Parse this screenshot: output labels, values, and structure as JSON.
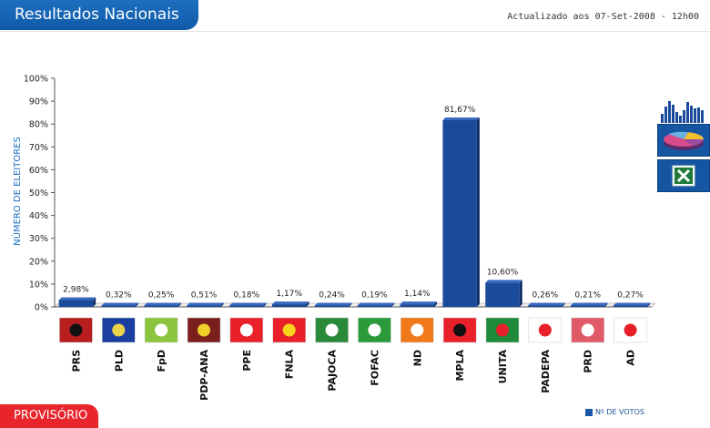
{
  "header": {
    "title": "Resultados Nacionais",
    "updated": "Actualizado aos 07-Set-2008 - 12h00"
  },
  "footer": {
    "status": "PROVISÓRIO",
    "legend": "Nº DE VOTOS"
  },
  "side_buttons": [
    {
      "name": "bar-chart-view-icon"
    },
    {
      "name": "pie-chart-view-icon"
    },
    {
      "name": "excel-export-icon"
    }
  ],
  "colors": {
    "bar": "#1a4a9a",
    "accent": "#0f5aa8",
    "status": "#e8252b"
  },
  "chart_data": {
    "type": "bar",
    "title": "",
    "ylabel": "NÚMERO DE ELEITORES",
    "xlabel": "",
    "ylim": [
      0,
      100
    ],
    "yticks": [
      "0%",
      "10%",
      "20%",
      "30%",
      "40%",
      "50%",
      "60%",
      "70%",
      "80%",
      "90%",
      "100%"
    ],
    "grid": false,
    "categories": [
      "PRS",
      "PLD",
      "FpD",
      "PDP-ANA",
      "PPE",
      "FNLA",
      "PAJOCA",
      "FOFAC",
      "ND",
      "MPLA",
      "UNITA",
      "PADEPA",
      "PRD",
      "AD"
    ],
    "values": [
      2.98,
      0.32,
      0.25,
      0.51,
      0.18,
      1.17,
      0.24,
      0.19,
      1.14,
      81.67,
      10.6,
      0.26,
      0.21,
      0.27
    ],
    "labels": [
      "2,98%",
      "0,32%",
      "0,25%",
      "0,51%",
      "0,18%",
      "1,17%",
      "0,24%",
      "0,19%",
      "1,14%",
      "81,67%",
      "10,60%",
      "0,26%",
      "0,21%",
      "0,27%"
    ],
    "flags": [
      [
        "#b81e1e",
        "#111111"
      ],
      [
        "#1a3fa0",
        "#e8d24a"
      ],
      [
        "#8bc53f",
        "#ffffff"
      ],
      [
        "#7b1e1e",
        "#f1cf2b"
      ],
      [
        "#e8202a",
        "#ffffff"
      ],
      [
        "#e8202a",
        "#f7d51d"
      ],
      [
        "#2a8a3a",
        "#ffffff"
      ],
      [
        "#2a9a3a",
        "#ffffff"
      ],
      [
        "#f07a1a",
        "#ffffff"
      ],
      [
        "#e8202a",
        "#111111"
      ],
      [
        "#1e8a3a",
        "#e8202a"
      ],
      [
        "#ffffff",
        "#e8202a"
      ],
      [
        "#e05a6a",
        "#ffffff"
      ],
      [
        "#ffffff",
        "#e8202a"
      ]
    ]
  }
}
